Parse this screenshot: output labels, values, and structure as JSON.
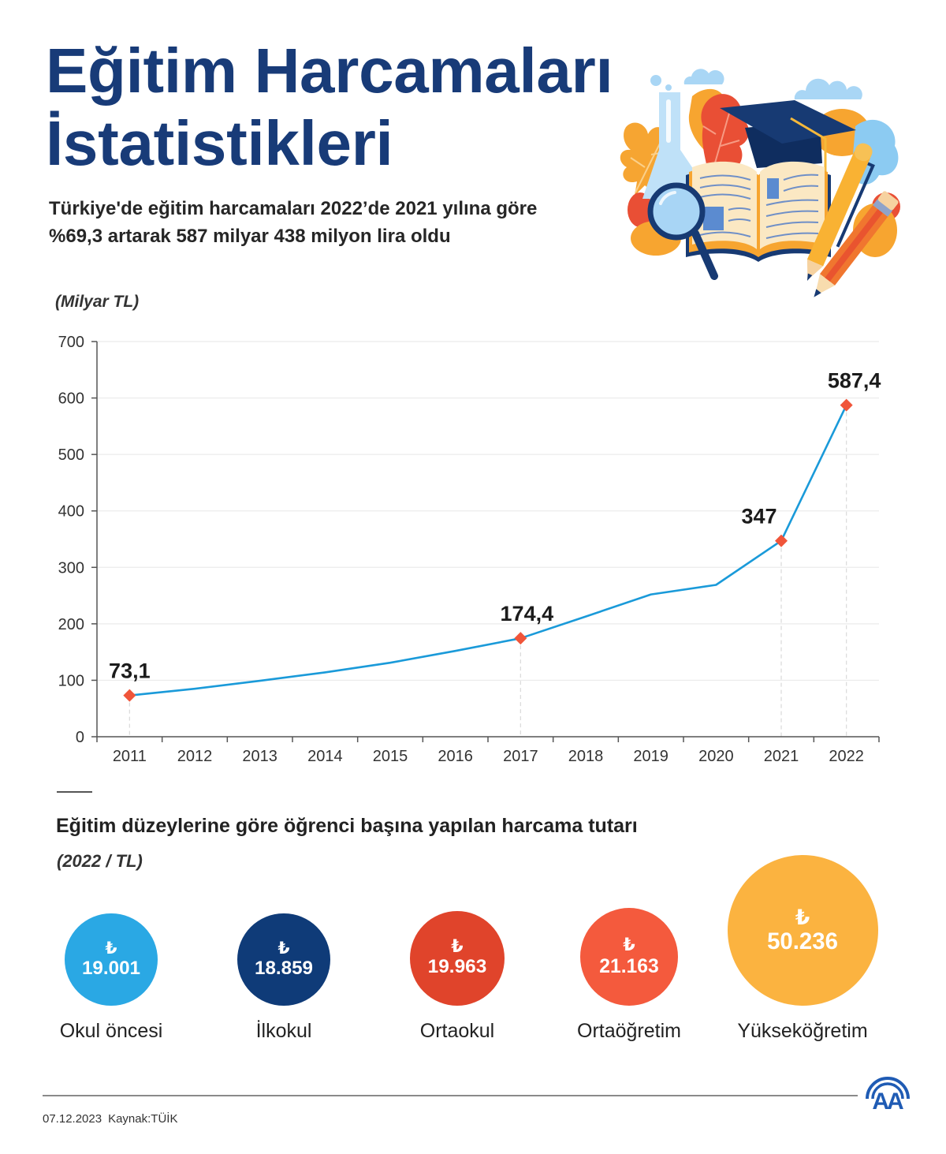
{
  "header": {
    "title_line1": "Eğitim Harcamaları",
    "title_line2": "İstatistikleri",
    "subtitle_line1": "Türkiye'de eğitim harcamaları 2022’de 2021 yılına göre",
    "subtitle_line2": "%69,3 artarak 587 milyar 438 milyon lira oldu"
  },
  "chart_data": {
    "type": "line",
    "title": "",
    "xlabel": "",
    "ylabel": "(Milyar TL)",
    "categories": [
      "2011",
      "2012",
      "2013",
      "2014",
      "2015",
      "2016",
      "2017",
      "2018",
      "2019",
      "2020",
      "2021",
      "2022"
    ],
    "values": [
      73.1,
      85,
      99,
      114,
      131,
      152,
      174.4,
      213,
      252,
      269,
      347,
      587.4
    ],
    "data_labels": [
      "73,1",
      null,
      null,
      null,
      null,
      null,
      "174,4",
      null,
      null,
      null,
      "347",
      "587,4"
    ],
    "ylim": [
      0,
      700
    ],
    "yticks": [
      0,
      100,
      200,
      300,
      400,
      500,
      600,
      700
    ],
    "grid": true,
    "legend": "none",
    "line_color": "#1a9ad9",
    "marker_color": "#f0553a"
  },
  "per_student": {
    "title": "Eğitim düzeylerine göre öğrenci başına yapılan harcama tutarı",
    "unit": "(2022 / TL)",
    "currency_symbol": "₺",
    "items": [
      {
        "label": "Okul öncesi",
        "value": "19.001",
        "amount": 19001,
        "color": "#2aa8e4"
      },
      {
        "label": "İlkokul",
        "value": "18.859",
        "amount": 18859,
        "color": "#0f3b78"
      },
      {
        "label": "Ortaokul",
        "value": "19.963",
        "amount": 19963,
        "color": "#e0442b"
      },
      {
        "label": "Ortaöğretim",
        "value": "21.163",
        "amount": 21163,
        "color": "#f45a3d"
      },
      {
        "label": "Yükseköğretim",
        "value": "50.236",
        "amount": 50236,
        "color": "#fbb340"
      }
    ]
  },
  "footer": {
    "date": "07.12.2023",
    "source": "Kaynak:TÜİK"
  },
  "logo": {
    "text": "AA",
    "color": "#1f5bb4"
  },
  "colors": {
    "title": "#183b78",
    "text": "#222222"
  }
}
